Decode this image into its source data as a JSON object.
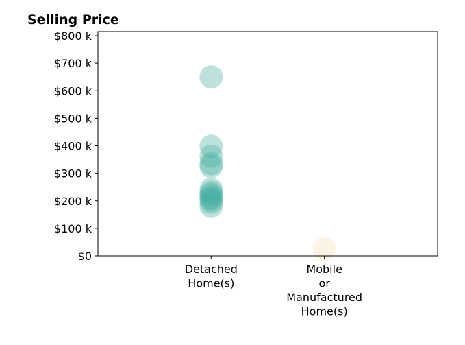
{
  "chart_data": {
    "type": "scatter",
    "title": "Selling Price",
    "xlabel": "",
    "ylabel": "",
    "categories": [
      "Detached\nHome(s)",
      "Mobile\nor\nManufactured\nHome(s)"
    ],
    "xlim": [
      -1,
      2
    ],
    "ylim": [
      0,
      815000
    ],
    "y_ticks": [
      0,
      100000,
      200000,
      300000,
      400000,
      500000,
      600000,
      700000,
      800000
    ],
    "y_tick_labels": [
      "$0",
      "$100 k",
      "$200 k",
      "$300 k",
      "$400 k",
      "$500 k",
      "$600 k",
      "$700 k",
      "$800 k"
    ],
    "grid": false,
    "series": [
      {
        "category": "Detached\nHome(s)",
        "color": "#41ab9d",
        "values": [
          650000,
          398000,
          362000,
          335000,
          325000,
          242000,
          230000,
          222000,
          212000,
          205000,
          195000,
          180000
        ]
      },
      {
        "category": "Mobile\nor\nManufactured\nHome(s)",
        "color": "#f3dcae",
        "values": [
          25000
        ]
      }
    ]
  }
}
